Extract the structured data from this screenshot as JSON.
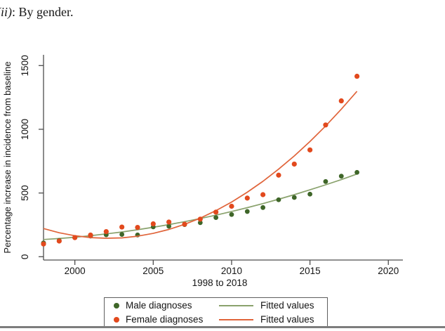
{
  "title": {
    "index": "(ii)",
    "suffix": ": By gender."
  },
  "colors": {
    "male_dot": "#3f6629",
    "male_line": "#8aa26d",
    "female_dot": "#e2491d",
    "female_line": "#e0643a",
    "axis": "#4d4d4d",
    "text": "#141414",
    "rule": "#7d7d7d"
  },
  "chart_data": {
    "type": "scatter",
    "title": "(ii): By gender.",
    "xlabel": "1998 to 2018",
    "ylabel": "Percentage increase in incidence from baseline",
    "x": [
      1998,
      1999,
      2000,
      2001,
      2002,
      2003,
      2004,
      2005,
      2006,
      2007,
      2008,
      2009,
      2010,
      2011,
      2012,
      2013,
      2014,
      2015,
      2016,
      2017,
      2018
    ],
    "series": [
      {
        "name": "Male diagnoses",
        "kind": "scatter",
        "color_key": "male_dot",
        "values": [
          108,
          128,
          150,
          162,
          172,
          175,
          171,
          234,
          239,
          252,
          267,
          307,
          331,
          355,
          386,
          447,
          465,
          491,
          590,
          632,
          662
        ]
      },
      {
        "name": "Female diagnoses",
        "kind": "scatter",
        "color_key": "female_dot",
        "values": [
          100,
          123,
          150,
          170,
          197,
          233,
          230,
          258,
          272,
          255,
          295,
          350,
          396,
          460,
          487,
          640,
          727,
          838,
          1034,
          1223,
          1416
        ]
      },
      {
        "name": "Fitted values",
        "kind": "line",
        "color_key": "male_line",
        "values": [
          135,
          143,
          153,
          165,
          179,
          194,
          212,
          231,
          252,
          275,
          300,
          326,
          355,
          385,
          417,
          451,
          487,
          525,
          564,
          605,
          649
        ]
      },
      {
        "name": "Fitted values",
        "kind": "line",
        "color_key": "female_line",
        "values": [
          221,
          188,
          165,
          150,
          145,
          148,
          161,
          183,
          214,
          254,
          303,
          362,
          429,
          506,
          592,
          687,
          791,
          904,
          1026,
          1158,
          1298
        ]
      }
    ],
    "x_ticks": [
      2000,
      2005,
      2010,
      2015,
      2020
    ],
    "y_ticks": [
      0,
      500,
      1000,
      1500
    ],
    "xlim": [
      1998,
      2020.9
    ],
    "ylim": [
      0,
      1500
    ],
    "grid": false,
    "legend_position": "bottom",
    "legend": {
      "rows": [
        {
          "label": "Male diagnoses",
          "line_label": "Fitted values"
        },
        {
          "label": "Female diagnoses",
          "line_label": "Fitted values"
        }
      ]
    }
  }
}
